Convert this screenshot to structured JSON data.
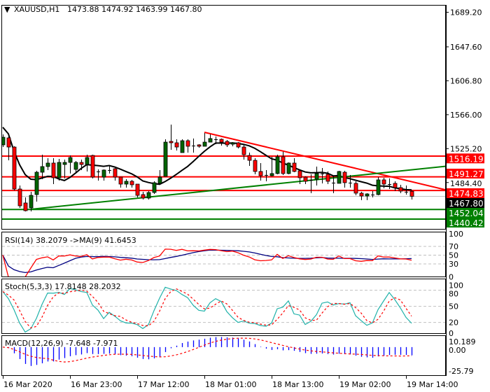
{
  "header": {
    "menu_icon": "triangle-down-icon",
    "symbol": "XAUUSD,H1",
    "ohlc": "1473.88 1474.92 1463.99 1467.80"
  },
  "chart_data": {
    "type": "candlestick",
    "symbol": "XAUUSD",
    "timeframe": "H1",
    "colors": {
      "bull": "#006400",
      "bear": "#ff0000",
      "ma": "#000000",
      "current_price_line": "#c0c0c0"
    },
    "candles_ohlc": [
      [
        1529.7,
        1542.3,
        1527.1,
        1538.9
      ],
      [
        1538.1,
        1539.8,
        1511.1,
        1527.1
      ],
      [
        1527.1,
        1528.0,
        1474.9,
        1476.6
      ],
      [
        1476.6,
        1480.8,
        1453.9,
        1456.4
      ],
      [
        1459.8,
        1466.5,
        1449.7,
        1450.5
      ],
      [
        1453.9,
        1473.3,
        1449.7,
        1469.0
      ],
      [
        1469.9,
        1498.5,
        1461.5,
        1496.8
      ],
      [
        1496.8,
        1517.9,
        1488.4,
        1503.6
      ],
      [
        1503.6,
        1513.7,
        1499.4,
        1507.8
      ],
      [
        1507.8,
        1513.7,
        1482.5,
        1490.1
      ],
      [
        1490.1,
        1512.8,
        1486.7,
        1508.6
      ],
      [
        1506.1,
        1512.0,
        1489.3,
        1508.6
      ],
      [
        1508.6,
        1517.0,
        1495.2,
        1514.5
      ],
      [
        1500.2,
        1510.3,
        1496.0,
        1508.6
      ],
      [
        1508.6,
        1512.0,
        1499.4,
        1506.1
      ],
      [
        1506.1,
        1517.9,
        1497.7,
        1514.5
      ],
      [
        1517.0,
        1517.9,
        1489.3,
        1490.9
      ],
      [
        1497.7,
        1500.2,
        1486.7,
        1497.7
      ],
      [
        1490.9,
        1500.2,
        1486.7,
        1499.4
      ],
      [
        1499.4,
        1505.3,
        1495.2,
        1499.4
      ],
      [
        1501.0,
        1501.9,
        1486.7,
        1490.9
      ],
      [
        1490.9,
        1490.9,
        1478.3,
        1482.5
      ],
      [
        1482.5,
        1488.4,
        1478.3,
        1485.9
      ],
      [
        1485.9,
        1487.6,
        1478.3,
        1481.7
      ],
      [
        1482.5,
        1482.5,
        1466.5,
        1469.0
      ],
      [
        1469.9,
        1473.3,
        1464.0,
        1465.7
      ],
      [
        1465.7,
        1474.1,
        1464.0,
        1472.4
      ],
      [
        1472.4,
        1485.9,
        1470.7,
        1484.2
      ],
      [
        1483.4,
        1499.4,
        1482.5,
        1490.9
      ],
      [
        1491.8,
        1536.4,
        1491.8,
        1533.0
      ],
      [
        1533.9,
        1554.1,
        1523.8,
        1532.2
      ],
      [
        1532.2,
        1536.4,
        1522.9,
        1527.1
      ],
      [
        1520.4,
        1536.4,
        1520.4,
        1534.7
      ],
      [
        1534.7,
        1536.4,
        1520.4,
        1528.0
      ],
      [
        1528.8,
        1537.3,
        1520.4,
        1528.8
      ],
      [
        1529.7,
        1530.5,
        1526.3,
        1528.0
      ],
      [
        1528.0,
        1544.0,
        1528.0,
        1533.0
      ],
      [
        1533.0,
        1542.3,
        1533.0,
        1537.3
      ],
      [
        1536.4,
        1539.8,
        1530.5,
        1536.4
      ],
      [
        1536.4,
        1537.3,
        1528.8,
        1533.0
      ],
      [
        1533.9,
        1535.6,
        1527.1,
        1529.7
      ],
      [
        1530.5,
        1533.0,
        1528.0,
        1532.2
      ],
      [
        1532.2,
        1533.0,
        1525.5,
        1527.1
      ],
      [
        1527.1,
        1529.7,
        1512.0,
        1517.9
      ],
      [
        1517.0,
        1520.4,
        1504.4,
        1511.1
      ],
      [
        1511.1,
        1513.7,
        1494.3,
        1497.7
      ],
      [
        1497.7,
        1507.8,
        1486.7,
        1492.6
      ],
      [
        1493.5,
        1499.4,
        1485.9,
        1493.5
      ],
      [
        1492.6,
        1515.4,
        1491.8,
        1495.2
      ],
      [
        1495.2,
        1517.9,
        1494.3,
        1515.4
      ],
      [
        1515.4,
        1521.3,
        1493.5,
        1495.2
      ],
      [
        1495.2,
        1508.6,
        1494.3,
        1507.8
      ],
      [
        1507.8,
        1513.7,
        1496.8,
        1497.7
      ],
      [
        1498.5,
        1500.2,
        1482.5,
        1490.1
      ],
      [
        1490.9,
        1491.8,
        1482.5,
        1485.9
      ],
      [
        1487.6,
        1494.3,
        1471.6,
        1487.6
      ],
      [
        1488.4,
        1503.6,
        1480.8,
        1495.2
      ],
      [
        1495.2,
        1501.9,
        1483.4,
        1495.2
      ],
      [
        1494.3,
        1497.7,
        1482.5,
        1485.9
      ],
      [
        1484.2,
        1491.8,
        1471.6,
        1484.2
      ],
      [
        1483.4,
        1498.5,
        1483.4,
        1497.7
      ],
      [
        1496.8,
        1498.5,
        1478.3,
        1484.2
      ],
      [
        1484.2,
        1493.5,
        1478.3,
        1484.2
      ],
      [
        1483.4,
        1485.9,
        1469.0,
        1471.6
      ],
      [
        1471.6,
        1473.3,
        1463.2,
        1468.2
      ],
      [
        1468.2,
        1471.6,
        1463.2,
        1470.7
      ],
      [
        1469.9,
        1474.1,
        1466.5,
        1469.9
      ],
      [
        1469.9,
        1490.9,
        1469.0,
        1487.6
      ],
      [
        1487.6,
        1490.1,
        1477.5,
        1482.5
      ],
      [
        1482.5,
        1489.3,
        1476.6,
        1482.5
      ],
      [
        1483.4,
        1485.9,
        1474.1,
        1478.3
      ],
      [
        1478.3,
        1481.7,
        1471.6,
        1474.1
      ],
      [
        1473.3,
        1480.8,
        1469.9,
        1473.3
      ],
      [
        1473.88,
        1474.92,
        1463.99,
        1467.8
      ]
    ],
    "price_axis": {
      "labels": [
        "1689.20",
        "1647.60",
        "1606.80",
        "1566.00",
        "1525.20",
        "1484.40"
      ]
    },
    "levels": [
      {
        "price": 1516.19,
        "label": "1516.19",
        "color": "#ff0000"
      },
      {
        "price": 1491.27,
        "label": "1491.27",
        "color": "#ff0000"
      },
      {
        "price": 1474.83,
        "label": "1474.83",
        "color": "#ff0000"
      },
      {
        "price": 1452.04,
        "label": "1452.04",
        "color": "#008000"
      },
      {
        "price": 1440.42,
        "label": "1440.42",
        "color": "#008000"
      }
    ],
    "current_price": {
      "price": 1467.8,
      "label": "1467.80"
    },
    "trendlines": [
      {
        "color": "#ff0000",
        "start": {
          "time": "18 Mar 01:00",
          "price": 1544.8
        },
        "end": {
          "time": "19 Mar 21:00",
          "price": 1475.8
        }
      },
      {
        "color": "#008000",
        "start": {
          "time": "16 Mar 16:00",
          "price": 1452.2
        },
        "end": {
          "time": "19 Mar 21:00",
          "price": 1503.9
        }
      }
    ],
    "time_axis": [
      "16 Mar 2020",
      "16 Mar 23:00",
      "17 Mar 12:00",
      "18 Mar 01:00",
      "18 Mar 13:00",
      "19 Mar 02:00",
      "19 Mar 14:00"
    ],
    "indicators": {
      "rsi": {
        "label": "RSI(14) 38.2079  ->MA(9) 41.6453",
        "axis_labels": [
          "100",
          "70",
          "50",
          "30",
          "0"
        ],
        "levels": [
          70,
          50,
          30
        ],
        "range": [
          0,
          100
        ],
        "colors": {
          "rsi": "#ff0000",
          "ma": "#000080"
        }
      },
      "stoch": {
        "label": "Stoch(5,3,3) 17.8148 28.2032",
        "axis_labels": [
          "100",
          "80",
          "50",
          "20",
          "0"
        ],
        "levels": [
          80,
          50,
          20
        ],
        "range": [
          0,
          100
        ],
        "colors": {
          "main": "#20b2aa",
          "signal": "#ff0000"
        }
      },
      "macd": {
        "label": "MACD(12,26,9) -7.648 -7.971",
        "axis_labels": [
          "10.189",
          "0.00",
          "-25.79"
        ],
        "range": [
          -25.79,
          10.189
        ],
        "colors": {
          "histogram": "#0000ff",
          "signal": "#ff0000"
        }
      }
    }
  }
}
